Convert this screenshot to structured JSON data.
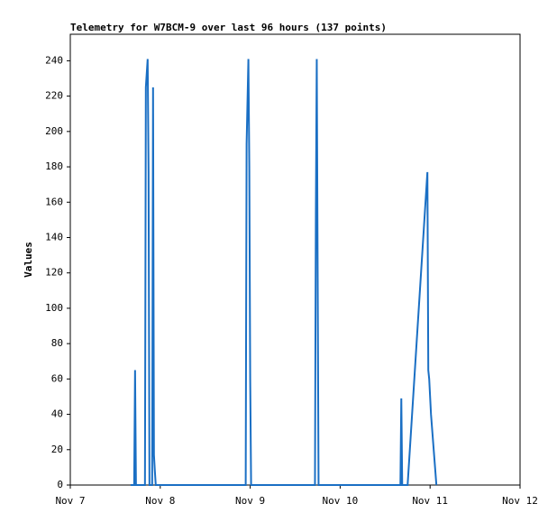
{
  "chart_data": {
    "type": "line",
    "title": "Telemetry for W7BCM-9 over last 96 hours (137 points)",
    "y_label": "Values",
    "color": "#1a6fc4",
    "x": [
      7.67,
      7.71,
      7.72,
      7.73,
      7.83,
      7.84,
      7.86,
      7.87,
      7.88,
      7.91,
      7.92,
      7.93,
      7.94,
      7.95,
      8.95,
      8.96,
      8.98,
      8.99,
      9.0,
      9.01,
      9.72,
      9.73,
      9.74,
      9.75,
      9.76,
      10.67,
      10.68,
      10.69,
      10.75,
      10.97,
      10.98,
      10.99,
      11.01,
      11.07
    ],
    "values": [
      0,
      0,
      65,
      0,
      0,
      225,
      241,
      177,
      0,
      0,
      225,
      17,
      8,
      0,
      0,
      193,
      241,
      180,
      60,
      0,
      0,
      153,
      241,
      120,
      0,
      0,
      49,
      0,
      0,
      177,
      65,
      60,
      40,
      0
    ],
    "xlim": [
      7,
      12
    ],
    "xticks": [
      {
        "value": 7,
        "label": "Nov 7"
      },
      {
        "value": 8,
        "label": "Nov 8"
      },
      {
        "value": 9,
        "label": "Nov 9"
      },
      {
        "value": 10,
        "label": "Nov 10"
      },
      {
        "value": 11,
        "label": "Nov 11"
      },
      {
        "value": 12,
        "label": "Nov 12"
      }
    ],
    "ylim": [
      0,
      255
    ],
    "yticks": [
      0,
      20,
      40,
      60,
      80,
      100,
      120,
      140,
      160,
      180,
      200,
      220,
      240
    ]
  }
}
